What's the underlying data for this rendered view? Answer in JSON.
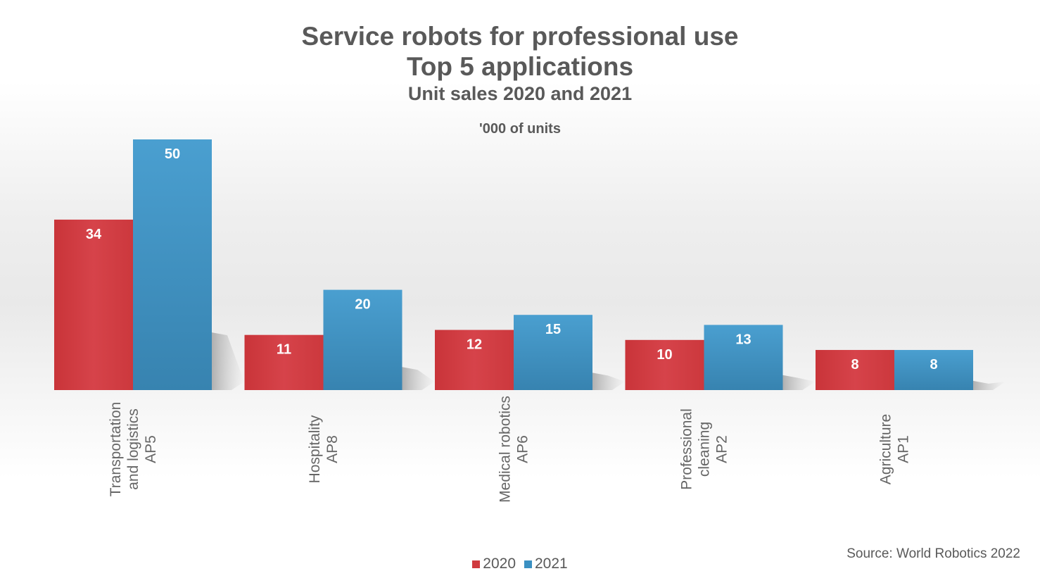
{
  "chart_data": {
    "type": "bar",
    "title": "Service robots for professional use",
    "title_line2": "Top 5 applications",
    "subtitle": "Unit sales 2020 and 2021",
    "units_note": "'000 of units",
    "categories": [
      [
        "Transportation",
        "and logistics",
        "AP5"
      ],
      [
        "Hospitality",
        "AP8"
      ],
      [
        "Medical robotics",
        "AP6"
      ],
      [
        "Professional",
        "cleaning",
        "AP2"
      ],
      [
        "Agriculture",
        "AP1"
      ]
    ],
    "series": [
      {
        "name": "2020",
        "color": "#d03a3e",
        "values": [
          34,
          11,
          12,
          10,
          8
        ]
      },
      {
        "name": "2021",
        "color": "#3a90c2",
        "values": [
          50,
          20,
          15,
          13,
          8
        ]
      }
    ],
    "data_labels": true,
    "grid": false,
    "legend": "bottom-center",
    "ylim": [
      0,
      50
    ],
    "source": "Source: World Robotics 2022"
  }
}
